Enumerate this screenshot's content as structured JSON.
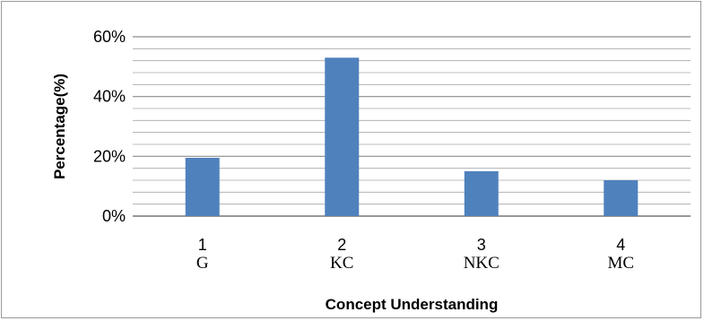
{
  "chart_data": {
    "type": "bar",
    "categories": [
      "1",
      "2",
      "3",
      "4"
    ],
    "category_sublabels": [
      "G",
      "KC",
      "NKC",
      "MC"
    ],
    "values": [
      19.5,
      53,
      15,
      12
    ],
    "ylim": [
      0,
      60
    ],
    "yticks": [
      "0%",
      "20%",
      "40%",
      "60%"
    ],
    "xlabel": "Concept Understanding",
    "ylabel": "Percentage(%)",
    "grid": true,
    "minor_grid": true,
    "legend": false,
    "bar_color": "#4f81bd"
  }
}
